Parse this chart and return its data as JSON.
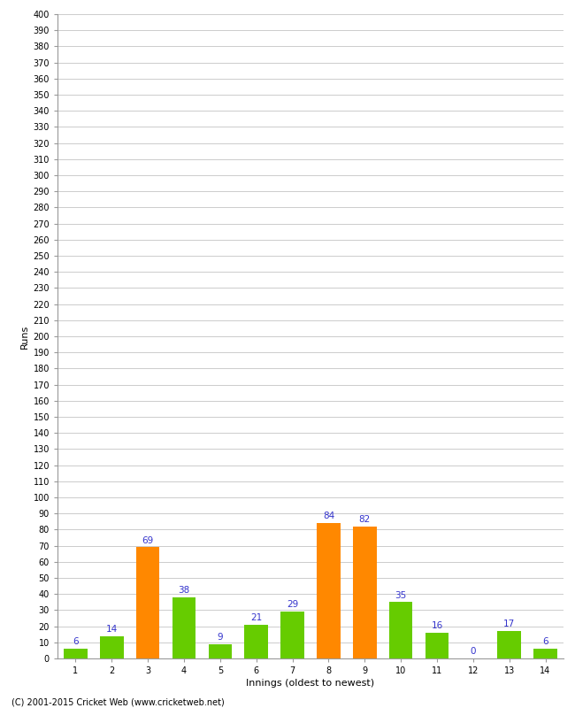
{
  "title": "",
  "xlabel": "Innings (oldest to newest)",
  "ylabel": "Runs",
  "categories": [
    1,
    2,
    3,
    4,
    5,
    6,
    7,
    8,
    9,
    10,
    11,
    12,
    13,
    14
  ],
  "values": [
    6,
    14,
    69,
    38,
    9,
    21,
    29,
    84,
    82,
    35,
    16,
    0,
    17,
    6
  ],
  "bar_colors": [
    "#66cc00",
    "#66cc00",
    "#ff8800",
    "#66cc00",
    "#66cc00",
    "#66cc00",
    "#66cc00",
    "#ff8800",
    "#ff8800",
    "#66cc00",
    "#66cc00",
    "#66cc00",
    "#66cc00",
    "#66cc00"
  ],
  "ylim": [
    0,
    400
  ],
  "label_color": "#3333cc",
  "label_fontsize": 7.5,
  "axis_label_fontsize": 8,
  "tick_fontsize": 7,
  "grid_color": "#cccccc",
  "background_color": "#ffffff",
  "footer": "(C) 2001-2015 Cricket Web (www.cricketweb.net)"
}
